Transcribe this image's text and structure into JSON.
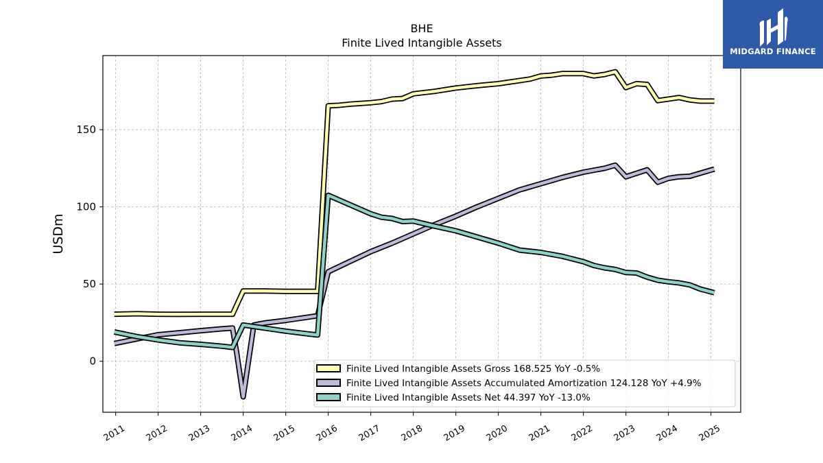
{
  "logo": {
    "text": "MIDGARD FINANCE",
    "color": "#2f5aa8"
  },
  "chart_data": {
    "type": "line",
    "title": "BHE",
    "subtitle": "Finite Lived Intangible Assets",
    "xlabel": "",
    "ylabel": "USDm",
    "xlim": [
      2010.7,
      2025.7
    ],
    "ylim": [
      -33,
      198
    ],
    "yticks": [
      0,
      50,
      100,
      150
    ],
    "xticks": [
      "2011",
      "2012",
      "2013",
      "2014",
      "2015",
      "2016",
      "2017",
      "2018",
      "2019",
      "2020",
      "2021",
      "2022",
      "2023",
      "2024",
      "2025"
    ],
    "grid": true,
    "legend_position": "bottom-right",
    "series": [
      {
        "name": "Finite Lived Intangible Assets Gross",
        "legend": "Finite Lived Intangible Assets Gross  168.525 YoY -0.5%",
        "color": "#ffffb3",
        "points": [
          [
            2010.97,
            30.5
          ],
          [
            2011.5,
            30.8
          ],
          [
            2012.0,
            30.5
          ],
          [
            2012.5,
            30.4
          ],
          [
            2013.0,
            30.5
          ],
          [
            2013.5,
            30.5
          ],
          [
            2013.75,
            30.5
          ],
          [
            2014.0,
            45.5
          ],
          [
            2014.5,
            45.5
          ],
          [
            2015.0,
            45.3
          ],
          [
            2015.5,
            45.3
          ],
          [
            2015.75,
            45.3
          ],
          [
            2016.0,
            165.5
          ],
          [
            2016.25,
            165.8
          ],
          [
            2016.5,
            166.5
          ],
          [
            2017.0,
            167.5
          ],
          [
            2017.25,
            168.2
          ],
          [
            2017.5,
            169.8
          ],
          [
            2017.75,
            170.2
          ],
          [
            2018.0,
            173.2
          ],
          [
            2018.5,
            174.8
          ],
          [
            2019.0,
            177.0
          ],
          [
            2019.5,
            178.5
          ],
          [
            2020.0,
            179.8
          ],
          [
            2020.5,
            181.8
          ],
          [
            2020.75,
            182.8
          ],
          [
            2021.0,
            184.8
          ],
          [
            2021.25,
            185.3
          ],
          [
            2021.5,
            186.3
          ],
          [
            2022.0,
            186.3
          ],
          [
            2022.25,
            184.8
          ],
          [
            2022.5,
            185.8
          ],
          [
            2022.75,
            187.5
          ],
          [
            2023.0,
            177.3
          ],
          [
            2023.25,
            179.8
          ],
          [
            2023.5,
            179.3
          ],
          [
            2023.75,
            168.8
          ],
          [
            2024.25,
            170.8
          ],
          [
            2024.5,
            169.3
          ],
          [
            2024.75,
            168.5
          ],
          [
            2025.08,
            168.5
          ]
        ]
      },
      {
        "name": "Finite Lived Intangible Assets Accumulated Amortization",
        "legend": "Finite Lived Intangible Assets Accumulated Amortization  124.128 YoY +4.9%",
        "color": "#bebada",
        "points": [
          [
            2010.97,
            11.5
          ],
          [
            2011.5,
            14.5
          ],
          [
            2012.0,
            17.2
          ],
          [
            2012.5,
            18.5
          ],
          [
            2013.0,
            19.8
          ],
          [
            2013.5,
            21.0
          ],
          [
            2013.75,
            21.5
          ],
          [
            2013.85,
            5.0
          ],
          [
            2014.0,
            -23.0
          ],
          [
            2014.25,
            23.5
          ],
          [
            2014.5,
            24.8
          ],
          [
            2015.0,
            26.5
          ],
          [
            2015.5,
            28.5
          ],
          [
            2015.75,
            29.5
          ],
          [
            2016.0,
            58.0
          ],
          [
            2016.5,
            64.5
          ],
          [
            2017.0,
            71.0
          ],
          [
            2017.5,
            76.5
          ],
          [
            2018.0,
            82.5
          ],
          [
            2018.5,
            88.5
          ],
          [
            2019.0,
            94.0
          ],
          [
            2019.5,
            100.0
          ],
          [
            2020.0,
            105.5
          ],
          [
            2020.5,
            111.0
          ],
          [
            2021.0,
            115.0
          ],
          [
            2021.5,
            119.0
          ],
          [
            2022.0,
            122.5
          ],
          [
            2022.5,
            125.0
          ],
          [
            2022.75,
            127.0
          ],
          [
            2023.0,
            119.5
          ],
          [
            2023.5,
            124.0
          ],
          [
            2023.75,
            116.0
          ],
          [
            2024.0,
            118.5
          ],
          [
            2024.25,
            119.5
          ],
          [
            2024.5,
            119.8
          ],
          [
            2025.08,
            124.5
          ]
        ]
      },
      {
        "name": "Finite Lived Intangible Assets Net",
        "legend": "Finite Lived Intangible Assets Net  44.397 YoY -13.0%",
        "color": "#8dd3c7",
        "points": [
          [
            2010.97,
            19.0
          ],
          [
            2011.5,
            16.0
          ],
          [
            2012.0,
            13.8
          ],
          [
            2012.5,
            12.0
          ],
          [
            2013.0,
            11.0
          ],
          [
            2013.5,
            9.8
          ],
          [
            2013.75,
            9.0
          ],
          [
            2014.0,
            23.5
          ],
          [
            2014.5,
            21.5
          ],
          [
            2015.0,
            19.5
          ],
          [
            2015.5,
            17.8
          ],
          [
            2015.75,
            17.0
          ],
          [
            2016.0,
            107.5
          ],
          [
            2016.5,
            101.5
          ],
          [
            2017.0,
            95.5
          ],
          [
            2017.25,
            93.3
          ],
          [
            2017.5,
            92.5
          ],
          [
            2017.75,
            90.5
          ],
          [
            2018.0,
            90.8
          ],
          [
            2018.5,
            87.5
          ],
          [
            2019.0,
            84.5
          ],
          [
            2019.5,
            80.5
          ],
          [
            2020.0,
            76.5
          ],
          [
            2020.5,
            72.0
          ],
          [
            2021.0,
            70.5
          ],
          [
            2021.5,
            68.0
          ],
          [
            2022.0,
            64.5
          ],
          [
            2022.25,
            62.0
          ],
          [
            2022.5,
            60.5
          ],
          [
            2022.75,
            59.5
          ],
          [
            2023.0,
            57.5
          ],
          [
            2023.25,
            57.2
          ],
          [
            2023.5,
            54.5
          ],
          [
            2023.75,
            52.5
          ],
          [
            2024.0,
            51.5
          ],
          [
            2024.25,
            50.8
          ],
          [
            2024.5,
            49.5
          ],
          [
            2024.75,
            46.8
          ],
          [
            2025.08,
            44.4
          ]
        ]
      }
    ]
  }
}
